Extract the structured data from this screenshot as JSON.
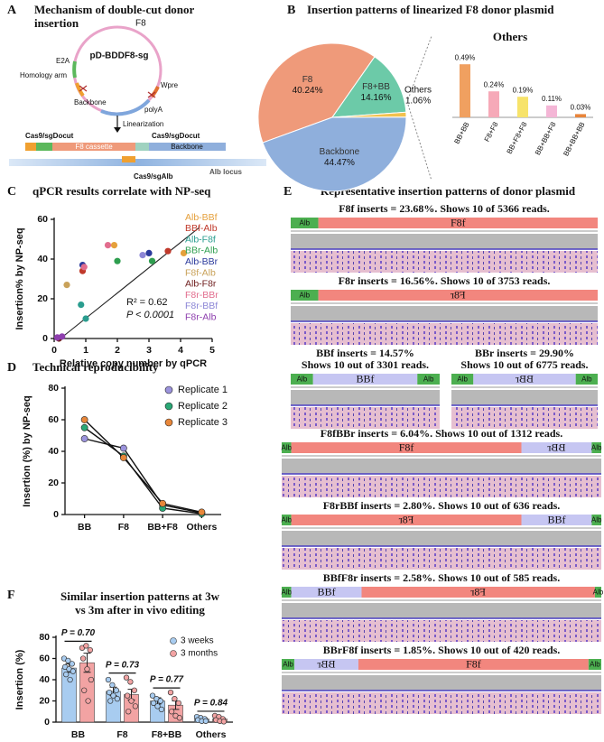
{
  "panel_a": {
    "label": "A",
    "title": [
      "Mechanism of double-cut donor",
      "insertion"
    ],
    "plasmid": "pD-BDDF8-sg",
    "features": [
      "F8",
      "E2A",
      "Homology arm",
      "Wpre",
      "Backbone",
      "polyA"
    ],
    "step": "Linearization",
    "cut_sites": [
      "Cas9/sgDocut",
      "Cas9/sgDocut"
    ],
    "linear_parts": [
      "F8 cassette",
      "Backbone"
    ],
    "alb_cut": "Cas9/sgAlb",
    "locus": "Alb locus"
  },
  "chart_data": [
    {
      "type": "pie",
      "panel": "B",
      "title": "Insertion patterns of linearized F8 donor plasmid",
      "categories": [
        "F8",
        "F8+BB",
        "Others",
        "Backbone"
      ],
      "values": [
        40.24,
        14.16,
        1.06,
        44.47
      ],
      "value_labels": [
        "40.24%",
        "14.16%",
        "1.06%",
        "44.47%"
      ],
      "colors": [
        "#ef9a7a",
        "#6ccaa8",
        "#f2c14e",
        "#8fafdc"
      ]
    },
    {
      "type": "bar",
      "title": "Others",
      "categories": [
        "BB+BB",
        "F8+F8",
        "BB+F8+F8",
        "BB+BB+F8",
        "BB+BB+BB"
      ],
      "values": [
        0.49,
        0.24,
        0.19,
        0.11,
        0.03
      ],
      "value_labels": [
        "0.49%",
        "0.24%",
        "0.19%",
        "0.11%",
        "0.03%"
      ],
      "colors": [
        "#f0a060",
        "#f6a9b8",
        "#f7e36a",
        "#f4b6d6",
        "#e8843a"
      ]
    },
    {
      "type": "scatter",
      "panel": "C",
      "title": "qPCR results correlate with NP-seq",
      "x_label": "Relative copy number by qPCR",
      "y_label": "Insertion% by NP-seq",
      "xlim": [
        0,
        5
      ],
      "xticks": [
        0,
        1,
        2,
        3,
        4,
        5
      ],
      "ylim": [
        0,
        60
      ],
      "yticks": [
        0,
        20,
        40,
        60
      ],
      "series": [
        {
          "name": "Alb-BBf",
          "color": "#e5a03c",
          "x": [
            1.9,
            4.1
          ],
          "values": [
            47,
            43
          ]
        },
        {
          "name": "BBf-Alb",
          "color": "#c0392b",
          "x": [
            0.9,
            3.6
          ],
          "values": [
            34,
            44
          ]
        },
        {
          "name": "Alb-F8f",
          "color": "#2a9d8f",
          "x": [
            0.85,
            1.0
          ],
          "values": [
            17,
            10
          ]
        },
        {
          "name": "BBr-Alb",
          "color": "#2e9e4f",
          "x": [
            2.0,
            3.1
          ],
          "values": [
            39,
            39
          ]
        },
        {
          "name": "Alb-BBr",
          "color": "#2b3a9c",
          "x": [
            0.9,
            3.0
          ],
          "values": [
            37,
            43
          ]
        },
        {
          "name": "F8f-Alb",
          "color": "#c9a25a",
          "x": [
            0.4
          ],
          "values": [
            27
          ]
        },
        {
          "name": "Alb-F8r",
          "color": "#6e1d1d",
          "x": [
            0.15
          ],
          "values": [
            0
          ]
        },
        {
          "name": "F8r-BBr",
          "color": "#e26d8e",
          "x": [
            1.7,
            0.95
          ],
          "values": [
            47,
            36
          ]
        },
        {
          "name": "F8r-BBf",
          "color": "#8c86d6",
          "x": [
            2.8
          ],
          "values": [
            42
          ]
        },
        {
          "name": "F8r-Alb",
          "color": "#8e3fae",
          "x": [
            0.1,
            0.25
          ],
          "values": [
            0.5,
            1
          ]
        }
      ],
      "fit_line": {
        "x": [
          0.2,
          4.6
        ],
        "values": [
          0,
          56
        ]
      },
      "annotations": [
        "R² = 0.62",
        "P < 0.0001"
      ]
    },
    {
      "type": "line",
      "panel": "D",
      "title": "Technical reproducibility",
      "categories": [
        "BB",
        "F8",
        "BB+F8",
        "Others"
      ],
      "y_label": "Insertion (%) by NP-seq",
      "ylim": [
        0,
        80
      ],
      "yticks": [
        0,
        20,
        40,
        60,
        80
      ],
      "series": [
        {
          "name": "Replicate 1",
          "color": "#9b93dc",
          "values": [
            48,
            42,
            6,
            1
          ]
        },
        {
          "name": "Replicate 2",
          "color": "#2aa876",
          "values": [
            55,
            37,
            4,
            0.5
          ]
        },
        {
          "name": "Replicate 3",
          "color": "#e8873a",
          "values": [
            60,
            36,
            7,
            1.5
          ]
        }
      ]
    },
    {
      "type": "bar",
      "panel": "F",
      "title": [
        "Similar insertion patterns at 3w",
        "vs 3m after in vivo editing"
      ],
      "categories": [
        "BB",
        "F8",
        "F8+BB",
        "Others"
      ],
      "y_label": "Insertion (%)",
      "ylim": [
        0,
        80
      ],
      "yticks": [
        0,
        20,
        40,
        60,
        80
      ],
      "series": [
        {
          "name": "3 weeks",
          "color": "#a8ccf0",
          "values": [
            51,
            29,
            20,
            3
          ],
          "errors": [
            4,
            4,
            3,
            1
          ],
          "points": [
            [
              60,
              58,
              55,
              52,
              50,
              48,
              45,
              40
            ],
            [
              40,
              35,
              30,
              28,
              25,
              22,
              20
            ],
            [
              25,
              22,
              20,
              18,
              15,
              12
            ],
            [
              5,
              4,
              3,
              2,
              1,
              1
            ]
          ]
        },
        {
          "name": "3 months",
          "color": "#f2a3a3",
          "values": [
            56,
            26,
            16,
            3
          ],
          "errors": [
            9,
            5,
            4,
            1
          ],
          "points": [
            [
              70,
              72,
              68,
              60,
              50,
              40,
              30,
              20
            ],
            [
              42,
              38,
              30,
              25,
              20,
              15,
              10
            ],
            [
              28,
              22,
              18,
              10,
              6,
              4
            ],
            [
              6,
              5,
              3,
              2,
              1,
              0.5
            ]
          ]
        }
      ],
      "p_values": [
        "P = 0.70",
        "P = 0.73",
        "P = 0.77",
        "P = 0.84"
      ]
    }
  ],
  "panel_e": {
    "label": "E",
    "title": "Representative insertion patterns of donor plasmid",
    "items": [
      {
        "caption": [
          "F8f inserts = 23.68%. Shows 10 of 5366 reads."
        ],
        "segments": [
          "Alb",
          "F8f"
        ]
      },
      {
        "caption": [
          "F8r inserts = 16.56%. Shows 10 of 3753 reads."
        ],
        "segments": [
          "Alb",
          "F8r"
        ]
      },
      {
        "caption": [
          "BBf inserts = 14.57%",
          "Shows 10 out of 3301 reads."
        ],
        "segments": [
          "Alb",
          "BBf",
          "Alb"
        ]
      },
      {
        "caption": [
          "BBr inserts = 29.90%",
          "Shows 10 out of 6775 reads."
        ],
        "segments": [
          "Alb",
          "BBr",
          "Alb"
        ]
      },
      {
        "caption": [
          "F8fBBr inserts = 6.04%. Shows 10 out of 1312 reads."
        ],
        "segments": [
          "Alb",
          "F8f",
          "BBr",
          "Alb"
        ]
      },
      {
        "caption": [
          "F8rBBf inserts = 2.80%. Shows 10 out of 636 reads."
        ],
        "segments": [
          "Alb",
          "F8r",
          "BBf",
          "Alb"
        ]
      },
      {
        "caption": [
          "BBfF8r inserts = 2.58%. Shows 10 out of 585 reads."
        ],
        "segments": [
          "Alb",
          "BBf",
          "F8r",
          "Alb"
        ]
      },
      {
        "caption": [
          "BBrF8f inserts = 1.85%. Shows 10 out of 420 reads."
        ],
        "segments": [
          "Alb",
          "BBr",
          "F8f",
          "Alb"
        ]
      }
    ]
  }
}
